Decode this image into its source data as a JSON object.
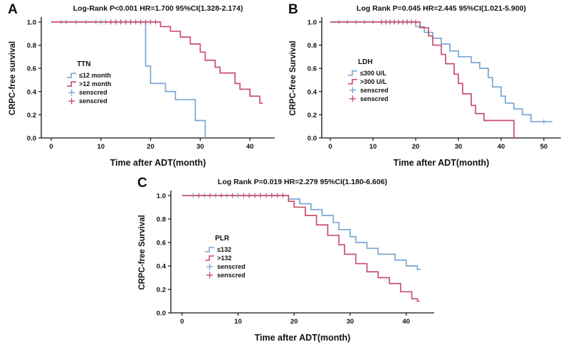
{
  "figure": {
    "background": "#ffffff",
    "text_color": "#111111",
    "group_colors": {
      "low": "#7aa6d2",
      "high": "#c94f6d"
    }
  },
  "chart_data": [
    {
      "type": "line",
      "subtype": "kaplan-meier",
      "panel": "A",
      "title": "Log-Rank P<0.001  HR=1.700   95%CI(1.328-2.174)",
      "xlabel": "Time after ADT(month)",
      "ylabel": "CRPC-free survival",
      "xlim": [
        -2,
        45
      ],
      "xticks": [
        0,
        10,
        20,
        30,
        40
      ],
      "ylim": [
        0,
        1.03
      ],
      "yticks": [
        "0.0",
        "0.2",
        "0.4",
        "0.6",
        "0.8",
        "1.0"
      ],
      "legend": {
        "title": "TTN",
        "pos": [
          0.11,
          0.4
        ],
        "entries": [
          {
            "label": "≤12 month",
            "type": "line",
            "series": 0
          },
          {
            "label": ">12 month",
            "type": "line",
            "series": 1
          },
          {
            "label": "senscred",
            "type": "censor",
            "series": 0
          },
          {
            "label": "senscred",
            "type": "censor",
            "series": 1
          }
        ]
      },
      "series": [
        {
          "name": "≤12 month",
          "color": "#7aa6d2",
          "steps": [
            [
              0,
              1.0
            ],
            [
              19,
              0.62
            ],
            [
              20,
              0.47
            ],
            [
              23,
              0.4
            ],
            [
              25,
              0.33
            ],
            [
              29,
              0.15
            ],
            [
              31,
              0.0
            ]
          ],
          "censors": [
            [
              2,
              1.0
            ],
            [
              3,
              1.0
            ],
            [
              5,
              1.0
            ],
            [
              7,
              1.0
            ],
            [
              9,
              1.0
            ],
            [
              10,
              1.0
            ],
            [
              11,
              1.0
            ],
            [
              12,
              1.0
            ],
            [
              13,
              1.0
            ],
            [
              14,
              1.0
            ],
            [
              15,
              1.0
            ],
            [
              16,
              1.0
            ],
            [
              17,
              1.0
            ],
            [
              18,
              1.0
            ]
          ]
        },
        {
          "name": ">12 month",
          "color": "#c94f6d",
          "steps": [
            [
              0,
              1.0
            ],
            [
              22,
              0.96
            ],
            [
              24,
              0.92
            ],
            [
              26,
              0.87
            ],
            [
              28,
              0.81
            ],
            [
              30,
              0.74
            ],
            [
              31,
              0.67
            ],
            [
              33,
              0.61
            ],
            [
              34,
              0.56
            ],
            [
              37,
              0.47
            ],
            [
              38,
              0.42
            ],
            [
              40,
              0.36
            ],
            [
              42,
              0.3
            ],
            [
              42.6,
              0.3
            ]
          ],
          "censors": [
            [
              12,
              1.0
            ],
            [
              13,
              1.0
            ],
            [
              14,
              1.0
            ],
            [
              15,
              1.0
            ],
            [
              16,
              1.0
            ],
            [
              17,
              1.0
            ],
            [
              18,
              1.0
            ],
            [
              19,
              1.0
            ],
            [
              20,
              1.0
            ],
            [
              21,
              1.0
            ]
          ]
        }
      ]
    },
    {
      "type": "line",
      "subtype": "kaplan-meier",
      "panel": "B",
      "title": "Log Rank P=0.045   HR=2.445   95%CI(1.021-5.900)",
      "xlabel": "Time after ADT(month)",
      "ylabel": "CRPC-free Survival",
      "xlim": [
        -2,
        54
      ],
      "xticks": [
        0,
        10,
        20,
        30,
        40,
        50
      ],
      "ylim": [
        0,
        1.03
      ],
      "yticks": [
        "0.0",
        "0.2",
        "0.4",
        "0.6",
        "0.8",
        "1.0"
      ],
      "legend": {
        "title": "LDH",
        "pos": [
          0.11,
          0.38
        ],
        "entries": [
          {
            "label": "≤300 U/L",
            "type": "line",
            "series": 0
          },
          {
            "label": ">300 U/L",
            "type": "line",
            "series": 1
          },
          {
            "label": "senscred",
            "type": "censor",
            "series": 0
          },
          {
            "label": "senscred",
            "type": "censor",
            "series": 1
          }
        ]
      },
      "series": [
        {
          "name": "≤300 U/L",
          "color": "#7aa6d2",
          "steps": [
            [
              0,
              1.0
            ],
            [
              20,
              0.96
            ],
            [
              22,
              0.91
            ],
            [
              24,
              0.86
            ],
            [
              26,
              0.81
            ],
            [
              28,
              0.75
            ],
            [
              30,
              0.7
            ],
            [
              33,
              0.65
            ],
            [
              35,
              0.6
            ],
            [
              37,
              0.52
            ],
            [
              38,
              0.44
            ],
            [
              40,
              0.36
            ],
            [
              41,
              0.3
            ],
            [
              43,
              0.25
            ],
            [
              45,
              0.2
            ],
            [
              47,
              0.14
            ],
            [
              52,
              0.14
            ]
          ],
          "censors": [
            [
              2,
              1.0
            ],
            [
              4,
              1.0
            ],
            [
              6,
              1.0
            ],
            [
              8,
              1.0
            ],
            [
              10,
              1.0
            ],
            [
              12,
              1.0
            ],
            [
              13,
              1.0
            ],
            [
              14,
              1.0
            ],
            [
              15,
              1.0
            ],
            [
              16,
              1.0
            ],
            [
              17,
              1.0
            ],
            [
              18,
              1.0
            ],
            [
              19,
              1.0
            ],
            [
              50,
              0.14
            ]
          ]
        },
        {
          "name": ">300 U/L",
          "color": "#c94f6d",
          "steps": [
            [
              0,
              1.0
            ],
            [
              21,
              0.95
            ],
            [
              23,
              0.88
            ],
            [
              24,
              0.8
            ],
            [
              26,
              0.72
            ],
            [
              27,
              0.64
            ],
            [
              29,
              0.55
            ],
            [
              30,
              0.47
            ],
            [
              31,
              0.38
            ],
            [
              33,
              0.28
            ],
            [
              34,
              0.21
            ],
            [
              36,
              0.15
            ],
            [
              43,
              0.15
            ],
            [
              43,
              0.0
            ]
          ],
          "censors": [
            [
              12,
              1.0
            ],
            [
              13,
              1.0
            ],
            [
              14,
              1.0
            ],
            [
              15,
              1.0
            ],
            [
              16,
              1.0
            ],
            [
              17,
              1.0
            ],
            [
              18,
              1.0
            ],
            [
              19,
              1.0
            ],
            [
              20,
              1.0
            ]
          ]
        }
      ]
    },
    {
      "type": "line",
      "subtype": "kaplan-meier",
      "panel": "C",
      "title": "Log Rank P=0.019   HR=2.279   95%CI(1.180-6.606)",
      "xlabel": "Time after ADT(month)",
      "ylabel": "CRPC-free Survival",
      "xlim": [
        -2,
        45
      ],
      "xticks": [
        0,
        10,
        20,
        30,
        40
      ],
      "ylim": [
        0,
        1.03
      ],
      "yticks": [
        "0.0",
        "0.2",
        "0.4",
        "0.6",
        "0.8",
        "1.0"
      ],
      "legend": {
        "title": "PLR",
        "pos": [
          0.13,
          0.4
        ],
        "entries": [
          {
            "label": "≤132",
            "type": "line",
            "series": 0
          },
          {
            "label": ">132",
            "type": "line",
            "series": 1
          },
          {
            "label": "senscred",
            "type": "censor",
            "series": 0
          },
          {
            "label": "senscred",
            "type": "censor",
            "series": 1
          }
        ]
      },
      "series": [
        {
          "name": "≤132",
          "color": "#7aa6d2",
          "steps": [
            [
              0,
              1.0
            ],
            [
              19,
              0.97
            ],
            [
              21,
              0.93
            ],
            [
              23,
              0.88
            ],
            [
              25,
              0.83
            ],
            [
              27,
              0.77
            ],
            [
              28,
              0.71
            ],
            [
              30,
              0.65
            ],
            [
              31,
              0.6
            ],
            [
              33,
              0.55
            ],
            [
              35,
              0.5
            ],
            [
              38,
              0.45
            ],
            [
              40,
              0.4
            ],
            [
              42,
              0.37
            ],
            [
              42.6,
              0.37
            ]
          ],
          "censors": [
            [
              2,
              1.0
            ],
            [
              4,
              1.0
            ],
            [
              6,
              1.0
            ],
            [
              8,
              1.0
            ],
            [
              10,
              1.0
            ],
            [
              12,
              1.0
            ],
            [
              14,
              1.0
            ],
            [
              16,
              1.0
            ],
            [
              18,
              1.0
            ]
          ]
        },
        {
          "name": ">132",
          "color": "#c94f6d",
          "steps": [
            [
              0,
              1.0
            ],
            [
              19,
              0.95
            ],
            [
              20,
              0.9
            ],
            [
              22,
              0.83
            ],
            [
              24,
              0.75
            ],
            [
              26,
              0.66
            ],
            [
              28,
              0.58
            ],
            [
              29,
              0.5
            ],
            [
              31,
              0.42
            ],
            [
              33,
              0.35
            ],
            [
              35,
              0.3
            ],
            [
              37,
              0.25
            ],
            [
              39,
              0.18
            ],
            [
              41,
              0.12
            ],
            [
              42,
              0.1
            ],
            [
              42.4,
              0.1
            ]
          ],
          "censors": [
            [
              3,
              1.0
            ],
            [
              5,
              1.0
            ],
            [
              7,
              1.0
            ],
            [
              9,
              1.0
            ],
            [
              11,
              1.0
            ],
            [
              12,
              1.0
            ],
            [
              13,
              1.0
            ],
            [
              14,
              1.0
            ],
            [
              15,
              1.0
            ],
            [
              16,
              1.0
            ],
            [
              17,
              1.0
            ],
            [
              18,
              1.0
            ]
          ]
        }
      ]
    }
  ]
}
